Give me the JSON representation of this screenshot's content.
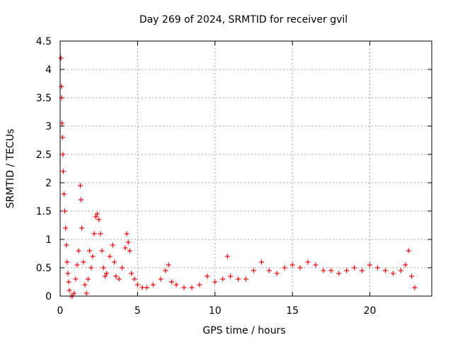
{
  "chart_data": {
    "type": "scatter",
    "title": "Day 269 of 2024, SRMTID for receiver gvil",
    "xlabel": "GPS time / hours",
    "ylabel": "SRMTID / TECUs",
    "xlim": [
      0,
      24
    ],
    "ylim": [
      0,
      4.5
    ],
    "xticks": [
      0,
      5,
      10,
      15,
      20
    ],
    "yticks": [
      0,
      0.5,
      1,
      1.5,
      2,
      2.5,
      3,
      3.5,
      4,
      4.5
    ],
    "xtick_labels": [
      "0",
      "5",
      "10",
      "15",
      "20"
    ],
    "ytick_labels": [
      "0",
      "0.5",
      "1",
      "1.5",
      "2",
      "2.5",
      "3",
      "3.5",
      "4",
      "4.5"
    ],
    "grid": true,
    "marker": "+",
    "color": "#ff0000",
    "series": [
      {
        "name": "SRMTID",
        "x": [
          0.05,
          0.08,
          0.1,
          0.12,
          0.15,
          0.18,
          0.2,
          0.25,
          0.3,
          0.35,
          0.4,
          0.45,
          0.5,
          0.55,
          0.6,
          0.7,
          0.8,
          0.9,
          1.0,
          1.1,
          1.2,
          1.3,
          1.35,
          1.4,
          1.5,
          1.6,
          1.7,
          1.8,
          1.9,
          2.0,
          2.1,
          2.2,
          2.3,
          2.4,
          2.5,
          2.6,
          2.7,
          2.8,
          2.9,
          3.0,
          3.2,
          3.4,
          3.5,
          3.6,
          3.8,
          4.0,
          4.2,
          4.3,
          4.4,
          4.5,
          4.6,
          4.8,
          5.0,
          5.3,
          5.6,
          6.0,
          6.5,
          6.8,
          7.0,
          7.2,
          7.5,
          8.0,
          8.5,
          9.0,
          9.5,
          10.0,
          10.5,
          10.8,
          11.0,
          11.5,
          12.0,
          12.5,
          13.0,
          13.5,
          14.0,
          14.5,
          15.0,
          15.5,
          16.0,
          16.5,
          17.0,
          17.5,
          18.0,
          18.5,
          19.0,
          19.5,
          20.0,
          20.5,
          21.0,
          21.5,
          22.0,
          22.3,
          22.5,
          22.7,
          22.9
        ],
        "y": [
          4.2,
          3.7,
          3.5,
          3.05,
          2.8,
          2.5,
          2.2,
          1.8,
          1.5,
          1.2,
          0.9,
          0.6,
          0.4,
          0.25,
          0.1,
          0.0,
          0.0,
          0.05,
          0.3,
          0.55,
          0.8,
          1.95,
          1.7,
          1.2,
          0.6,
          0.2,
          0.05,
          0.3,
          0.8,
          0.5,
          0.7,
          1.1,
          1.4,
          1.45,
          1.35,
          1.1,
          0.8,
          0.5,
          0.35,
          0.4,
          0.7,
          0.9,
          0.6,
          0.35,
          0.3,
          0.5,
          0.85,
          1.1,
          0.95,
          0.8,
          0.4,
          0.3,
          0.2,
          0.15,
          0.15,
          0.2,
          0.3,
          0.45,
          0.55,
          0.25,
          0.2,
          0.15,
          0.15,
          0.2,
          0.35,
          0.25,
          0.3,
          0.7,
          0.35,
          0.3,
          0.3,
          0.45,
          0.6,
          0.45,
          0.4,
          0.5,
          0.55,
          0.5,
          0.6,
          0.55,
          0.45,
          0.45,
          0.4,
          0.45,
          0.5,
          0.45,
          0.55,
          0.5,
          0.45,
          0.4,
          0.45,
          0.55,
          0.8,
          0.35,
          0.15
        ]
      }
    ]
  }
}
